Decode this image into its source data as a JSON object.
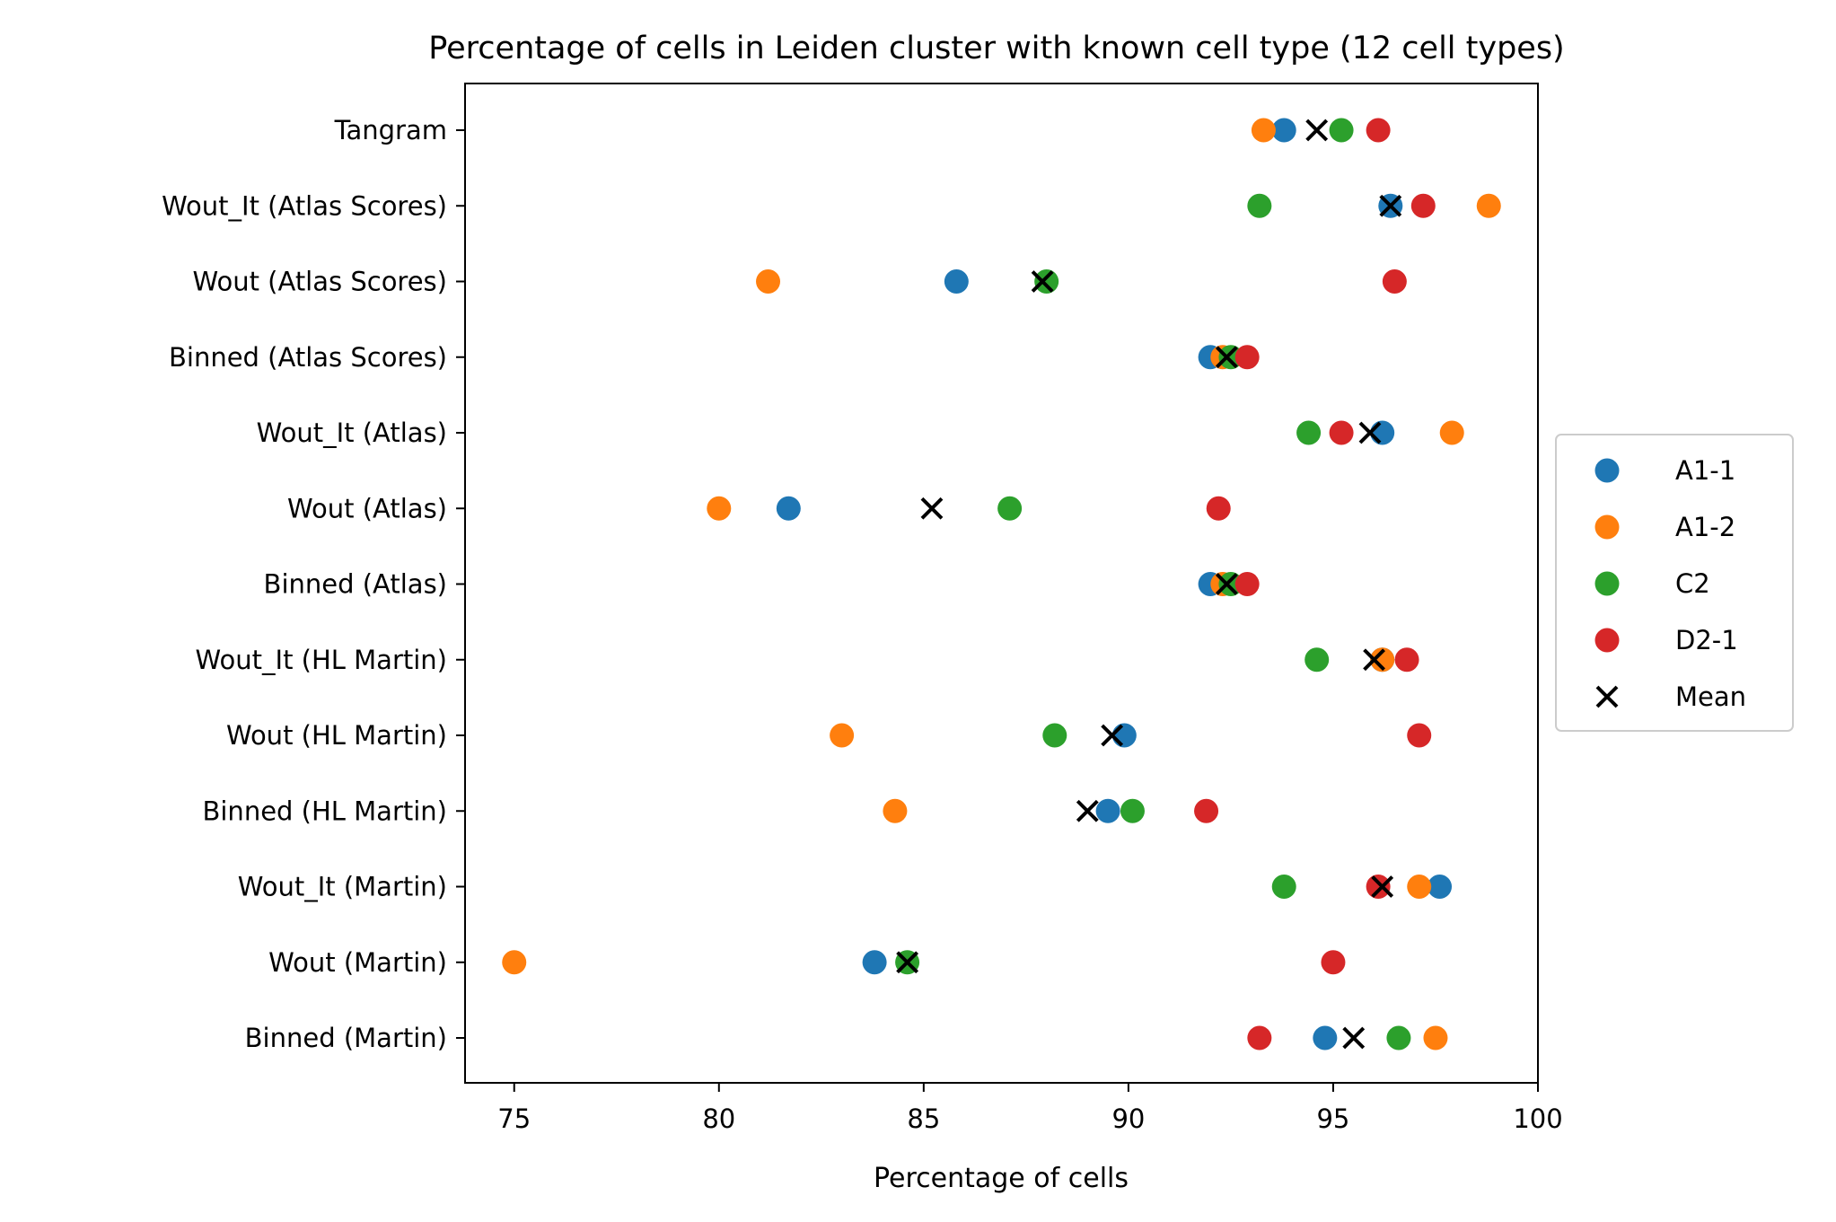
{
  "chart_data": {
    "type": "scatter",
    "title": "Percentage of cells in Leiden cluster with known cell type (12 cell types)",
    "xlabel": "Percentage of cells",
    "ylabel": "",
    "xlim": [
      73.8,
      100
    ],
    "xticks": [
      "75",
      "80",
      "85",
      "90",
      "95",
      "100"
    ],
    "grid": false,
    "legend_position": "right",
    "categories": [
      "Tangram",
      "Wout_It (Atlas Scores)",
      "Wout (Atlas Scores)",
      "Binned (Atlas Scores)",
      "Wout_It (Atlas)",
      "Wout (Atlas)",
      "Binned (Atlas)",
      "Wout_It (HL Martin)",
      "Wout (HL Martin)",
      "Binned (HL Martin)",
      "Wout_It (Martin)",
      "Wout (Martin)",
      "Binned (Martin)"
    ],
    "series": [
      {
        "name": "A1-1",
        "color": "#1f77b4",
        "marker": "circle",
        "values": [
          93.8,
          96.4,
          85.8,
          92.0,
          96.2,
          81.7,
          92.0,
          96.2,
          89.9,
          89.5,
          97.6,
          83.8,
          94.8
        ]
      },
      {
        "name": "A1-2",
        "color": "#ff7f0e",
        "marker": "circle",
        "values": [
          93.3,
          98.8,
          81.2,
          92.3,
          97.9,
          80.0,
          92.3,
          96.2,
          83.0,
          84.3,
          97.1,
          75.0,
          97.5
        ]
      },
      {
        "name": "C2",
        "color": "#2ca02c",
        "marker": "circle",
        "values": [
          95.2,
          93.2,
          88.0,
          92.5,
          94.4,
          87.1,
          92.5,
          94.6,
          88.2,
          90.1,
          93.8,
          84.6,
          96.6
        ]
      },
      {
        "name": "D2-1",
        "color": "#d62728",
        "marker": "circle",
        "values": [
          96.1,
          97.2,
          96.5,
          92.9,
          95.2,
          92.2,
          92.9,
          96.8,
          97.1,
          91.9,
          96.1,
          95.0,
          93.2
        ]
      },
      {
        "name": "Mean",
        "color": "#000000",
        "marker": "x",
        "values": [
          94.6,
          96.4,
          87.9,
          92.4,
          95.9,
          85.2,
          92.4,
          96.0,
          89.6,
          89.0,
          96.2,
          84.6,
          95.5
        ]
      }
    ]
  }
}
